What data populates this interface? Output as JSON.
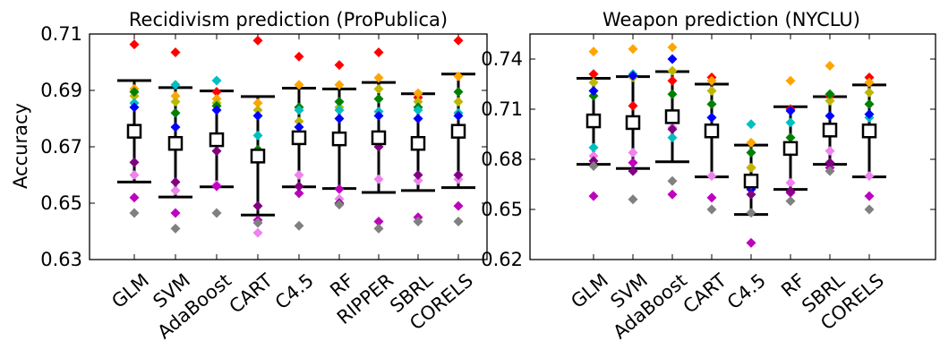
{
  "chart_data": [
    {
      "type": "scatter",
      "title": "Recidivism prediction (ProPublica)",
      "ylabel": "Accuracy",
      "ylim": [
        0.63,
        0.71
      ],
      "yticks": [
        "0.63",
        "0.65",
        "0.67",
        "0.69",
        "0.71"
      ],
      "yticks_values": [
        0.63,
        0.65,
        0.67,
        0.69,
        0.71
      ],
      "categories": [
        "GLM",
        "SVM",
        "AdaBoost",
        "CART",
        "C4.5",
        "RF",
        "RIPPER",
        "SBRL",
        "CORELS"
      ],
      "fold_colors": [
        "#ff0000",
        "#ffa500",
        "#bdb700",
        "#008000",
        "#00bfbf",
        "#0000ff",
        "#ee82ee",
        "#bf00bf",
        "#800080",
        "#808080"
      ],
      "folds": [
        [
          0.7063,
          0.6905,
          0.688,
          0.6895,
          0.6855,
          0.684,
          0.66,
          0.652,
          0.6645,
          0.6465
        ],
        [
          0.7035,
          0.688,
          0.686,
          0.682,
          0.692,
          0.677,
          0.6545,
          0.6465,
          0.6575,
          0.641
        ],
        [
          0.6895,
          0.687,
          0.6855,
          0.6845,
          0.6935,
          0.683,
          0.6565,
          0.656,
          0.6685,
          0.6465
        ],
        [
          0.7077,
          0.6855,
          0.683,
          0.669,
          0.674,
          0.681,
          0.6395,
          0.644,
          0.649,
          0.643
        ],
        [
          0.702,
          0.692,
          0.679,
          0.684,
          0.683,
          0.677,
          0.66,
          0.6535,
          0.656,
          0.642
        ],
        [
          0.699,
          0.692,
          0.684,
          0.686,
          0.683,
          0.68,
          0.6515,
          0.655,
          0.65,
          0.6495
        ],
        [
          0.7035,
          0.6945,
          0.6905,
          0.687,
          0.6825,
          0.681,
          0.6585,
          0.6435,
          0.67,
          0.641
        ],
        [
          0.6875,
          0.689,
          0.686,
          0.684,
          0.683,
          0.68,
          0.658,
          0.645,
          0.66,
          0.6435
        ],
        [
          0.7077,
          0.695,
          0.686,
          0.6895,
          0.682,
          0.681,
          0.6585,
          0.649,
          0.66,
          0.6435
        ]
      ],
      "means": [
        0.6755,
        0.6712,
        0.6725,
        0.6667,
        0.6732,
        0.6728,
        0.6732,
        0.6712,
        0.6755
      ],
      "upper": [
        0.6935,
        0.691,
        0.6898,
        0.6878,
        0.6908,
        0.6905,
        0.6928,
        0.6888,
        0.6958
      ],
      "lower": [
        0.6575,
        0.6522,
        0.6558,
        0.6458,
        0.6558,
        0.6552,
        0.6538,
        0.6545,
        0.6555
      ]
    },
    {
      "type": "scatter",
      "title": "Weapon prediction (NYCLU)",
      "ylabel": "",
      "ylim": [
        0.62,
        0.755
      ],
      "yticks": [
        "0.62",
        "0.65",
        "0.68",
        "0.71",
        "0.74"
      ],
      "yticks_values": [
        0.62,
        0.65,
        0.68,
        0.71,
        0.74
      ],
      "categories": [
        "GLM",
        "SVM",
        "AdaBoost",
        "CART",
        "C4.5",
        "RF",
        "SBRL",
        "CORELS"
      ],
      "fold_colors": [
        "#ff0000",
        "#ffa500",
        "#bdb700",
        "#008000",
        "#00bfbf",
        "#0000ff",
        "#ee82ee",
        "#bf00bf",
        "#800080",
        "#808080"
      ],
      "folds": [
        [
          0.731,
          0.7445,
          0.726,
          0.718,
          0.687,
          0.721,
          0.682,
          0.658,
          0.679,
          0.676
        ],
        [
          0.712,
          0.746,
          0.729,
          0.702,
          0.731,
          0.73,
          0.684,
          0.678,
          0.673,
          0.656
        ],
        [
          0.727,
          0.747,
          0.733,
          0.719,
          0.693,
          0.74,
          0.699,
          0.659,
          0.698,
          0.667
        ],
        [
          0.729,
          0.727,
          0.721,
          0.713,
          0.705,
          0.705,
          0.67,
          0.657,
          0.699,
          0.65
        ],
        [
          0.675,
          0.69,
          0.675,
          0.684,
          0.701,
          0.662,
          0.665,
          0.63,
          0.659,
          0.648
        ],
        [
          0.71,
          0.727,
          0.689,
          0.693,
          0.702,
          0.709,
          0.666,
          0.66,
          0.661,
          0.655
        ],
        [
          0.718,
          0.736,
          0.715,
          0.719,
          0.696,
          0.706,
          0.685,
          0.675,
          0.678,
          0.673
        ],
        [
          0.729,
          0.726,
          0.72,
          0.713,
          0.705,
          0.707,
          0.67,
          0.658,
          0.699,
          0.65
        ]
      ],
      "means": [
        0.703,
        0.702,
        0.7055,
        0.697,
        0.667,
        0.6865,
        0.6975,
        0.697
      ],
      "upper": [
        0.7285,
        0.7295,
        0.7325,
        0.725,
        0.6885,
        0.7115,
        0.7175,
        0.7245
      ],
      "lower": [
        0.677,
        0.6745,
        0.6785,
        0.6695,
        0.647,
        0.662,
        0.677,
        0.6695
      ]
    }
  ]
}
